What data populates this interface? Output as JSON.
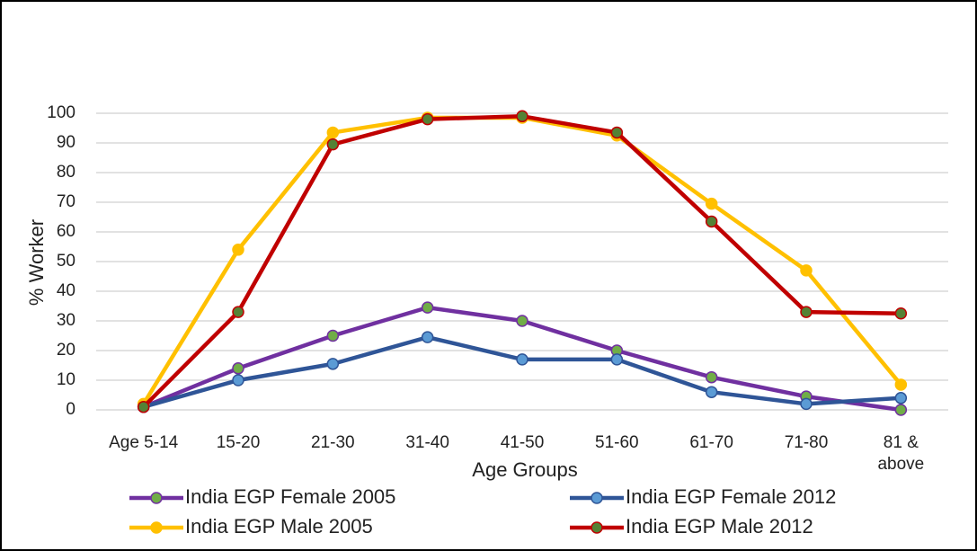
{
  "chart_data": {
    "type": "line",
    "x_label": "Age Groups",
    "y_label": "% Worker",
    "categories": [
      "Age 5-14",
      "15-20",
      "21-30",
      "31-40",
      "41-50",
      "51-60",
      "61-70",
      "71-80",
      "81 & above"
    ],
    "series": [
      {
        "name": "India EGP Female 2005",
        "color": "#7030a0",
        "marker_color": "#70ad47",
        "values": [
          1,
          14,
          25,
          34.5,
          30,
          20,
          11,
          4.5,
          0
        ]
      },
      {
        "name": "India EGP Female 2012",
        "color": "#2f5597",
        "marker_color": "#5b9bd5",
        "values": [
          1,
          10,
          15.5,
          24.5,
          17,
          17,
          6,
          2,
          4
        ]
      },
      {
        "name": "India EGP Male 2005",
        "color": "#ffc000",
        "marker_color": "#ffc000",
        "values": [
          2,
          54,
          93.5,
          98.5,
          98.5,
          92.5,
          69.5,
          47,
          8.5
        ]
      },
      {
        "name": "India EGP Male 2012",
        "color": "#c00000",
        "marker_color": "#548235",
        "values": [
          1,
          33,
          89.5,
          98,
          99,
          93.5,
          63.5,
          33,
          32.5
        ]
      }
    ],
    "ylim": [
      0,
      100
    ],
    "yticks": [
      0,
      10,
      20,
      30,
      40,
      50,
      60,
      70,
      80,
      90,
      100
    ],
    "grid": true
  }
}
